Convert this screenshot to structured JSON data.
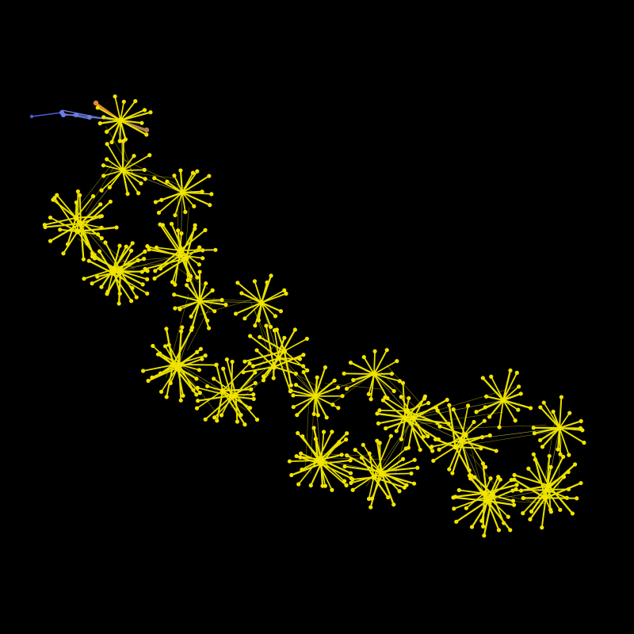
{
  "graph": {
    "background": "#000000",
    "palette": {
      "cluster": "#f2e400",
      "cluster_edge": "#e8e000",
      "inter_edge": "#8a8a40",
      "chain_blue": "#4a5cd8",
      "chain_blue_light": "#6c7ee0",
      "chain_orange": "#e08a2a",
      "chain_tan": "#b08050"
    },
    "clusters": [
      {
        "id": "hub-01",
        "leaves": 14,
        "spread": "medium"
      },
      {
        "id": "hub-02",
        "leaves": 14,
        "spread": "medium"
      },
      {
        "id": "hub-03",
        "leaves": 16,
        "spread": "medium"
      },
      {
        "id": "hub-04",
        "leaves": 26,
        "spread": "dense"
      },
      {
        "id": "hub-05",
        "leaves": 28,
        "spread": "dense"
      },
      {
        "id": "hub-06",
        "leaves": 26,
        "spread": "dense"
      },
      {
        "id": "hub-07",
        "leaves": 16,
        "spread": "medium"
      },
      {
        "id": "hub-08",
        "leaves": 14,
        "spread": "medium"
      },
      {
        "id": "hub-09",
        "leaves": 28,
        "spread": "dense"
      },
      {
        "id": "hub-10",
        "leaves": 24,
        "spread": "dense"
      },
      {
        "id": "hub-11",
        "leaves": 22,
        "spread": "dense"
      },
      {
        "id": "hub-12",
        "leaves": 16,
        "spread": "medium"
      },
      {
        "id": "hub-13",
        "leaves": 14,
        "spread": "medium"
      },
      {
        "id": "hub-14",
        "leaves": 26,
        "spread": "dense"
      },
      {
        "id": "hub-15",
        "leaves": 26,
        "spread": "dense"
      },
      {
        "id": "hub-16",
        "leaves": 24,
        "spread": "dense"
      },
      {
        "id": "hub-17",
        "leaves": 14,
        "spread": "medium"
      },
      {
        "id": "hub-18",
        "leaves": 20,
        "spread": "dense"
      },
      {
        "id": "hub-19",
        "leaves": 16,
        "spread": "medium"
      },
      {
        "id": "hub-20",
        "leaves": 26,
        "spread": "dense"
      },
      {
        "id": "hub-21",
        "leaves": 26,
        "spread": "dense"
      }
    ],
    "inter_links": [
      [
        "hub-01",
        "hub-02"
      ],
      [
        "hub-02",
        "hub-03"
      ],
      [
        "hub-02",
        "hub-04"
      ],
      [
        "hub-04",
        "hub-05"
      ],
      [
        "hub-03",
        "hub-06"
      ],
      [
        "hub-05",
        "hub-06"
      ],
      [
        "hub-06",
        "hub-07"
      ],
      [
        "hub-07",
        "hub-08"
      ],
      [
        "hub-07",
        "hub-09"
      ],
      [
        "hub-09",
        "hub-10"
      ],
      [
        "hub-08",
        "hub-11"
      ],
      [
        "hub-11",
        "hub-12"
      ],
      [
        "hub-12",
        "hub-13"
      ],
      [
        "hub-12",
        "hub-14"
      ],
      [
        "hub-14",
        "hub-15"
      ],
      [
        "hub-13",
        "hub-16"
      ],
      [
        "hub-16",
        "hub-17"
      ],
      [
        "hub-16",
        "hub-18"
      ],
      [
        "hub-18",
        "hub-19"
      ],
      [
        "hub-19",
        "hub-20"
      ],
      [
        "hub-18",
        "hub-21"
      ],
      [
        "hub-21",
        "hub-20"
      ],
      [
        "hub-10",
        "hub-11"
      ],
      [
        "hub-15",
        "hub-16"
      ]
    ],
    "chain": {
      "blue_nodes": 5,
      "orange_nodes": 2
    }
  }
}
